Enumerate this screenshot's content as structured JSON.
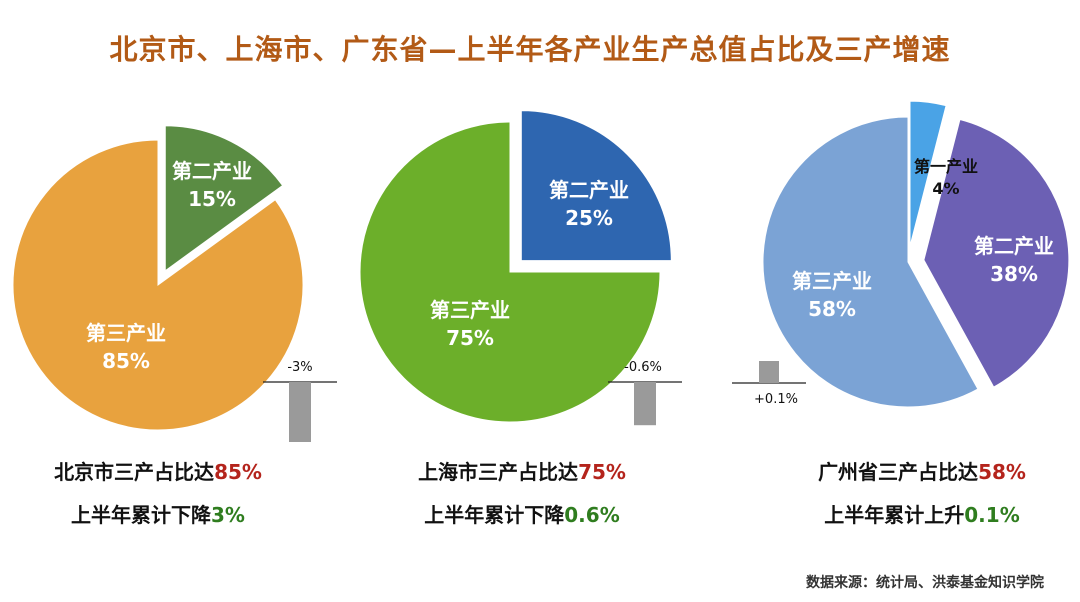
{
  "title": "北京市、上海市、广东省—上半年各产业生产总值占比及三产增速",
  "colors": {
    "title": "#b25a16",
    "highlight_share": "#b4241c",
    "highlight_growth": "#2f7d1f",
    "growth_bar": "#9a9a9a"
  },
  "chart_data": [
    {
      "type": "pie",
      "region": "北京市",
      "slices": [
        {
          "label": "第二产业",
          "value": 15,
          "display": "15%",
          "color": "#5a8c43",
          "exploded": true,
          "label_style": "light"
        },
        {
          "label": "第三产业",
          "value": 85,
          "display": "85%",
          "color": "#e8a23e",
          "exploded": false,
          "label_style": "light"
        }
      ],
      "growth": {
        "value": -3,
        "display": "-3%"
      },
      "caption_line1_prefix": "北京市三产占比达",
      "caption_line1_value": "85%",
      "caption_line2_prefix": "上半年累计下降",
      "caption_line2_value": "3%"
    },
    {
      "type": "pie",
      "region": "上海市",
      "slices": [
        {
          "label": "第二产业",
          "value": 25,
          "display": "25%",
          "color": "#2e66b0",
          "exploded": true,
          "label_style": "light"
        },
        {
          "label": "第三产业",
          "value": 75,
          "display": "75%",
          "color": "#6caf2a",
          "exploded": false,
          "label_style": "light"
        }
      ],
      "growth": {
        "value": -0.6,
        "display": "-0.6%"
      },
      "caption_line1_prefix": "上海市三产占比达",
      "caption_line1_value": "75%",
      "caption_line2_prefix": "上半年累计下降",
      "caption_line2_value": "0.6%"
    },
    {
      "type": "pie",
      "region": "广州省",
      "slices": [
        {
          "label": "第一产业",
          "value": 4,
          "display": "4%",
          "color": "#4aa3e6",
          "exploded": true,
          "label_style": "dark"
        },
        {
          "label": "第二产业",
          "value": 38,
          "display": "38%",
          "color": "#6c60b4",
          "exploded": true,
          "label_style": "light"
        },
        {
          "label": "第三产业",
          "value": 58,
          "display": "58%",
          "color": "#7ba3d5",
          "exploded": false,
          "label_style": "light"
        }
      ],
      "growth": {
        "value": 0.1,
        "display": "+0.1%"
      },
      "caption_line1_prefix": "广州省三产占比达",
      "caption_line1_value": "58%",
      "caption_line2_prefix": "上半年累计上升",
      "caption_line2_value": "0.1%"
    }
  ],
  "source": "数据来源：统计局、洪泰基金知识学院"
}
